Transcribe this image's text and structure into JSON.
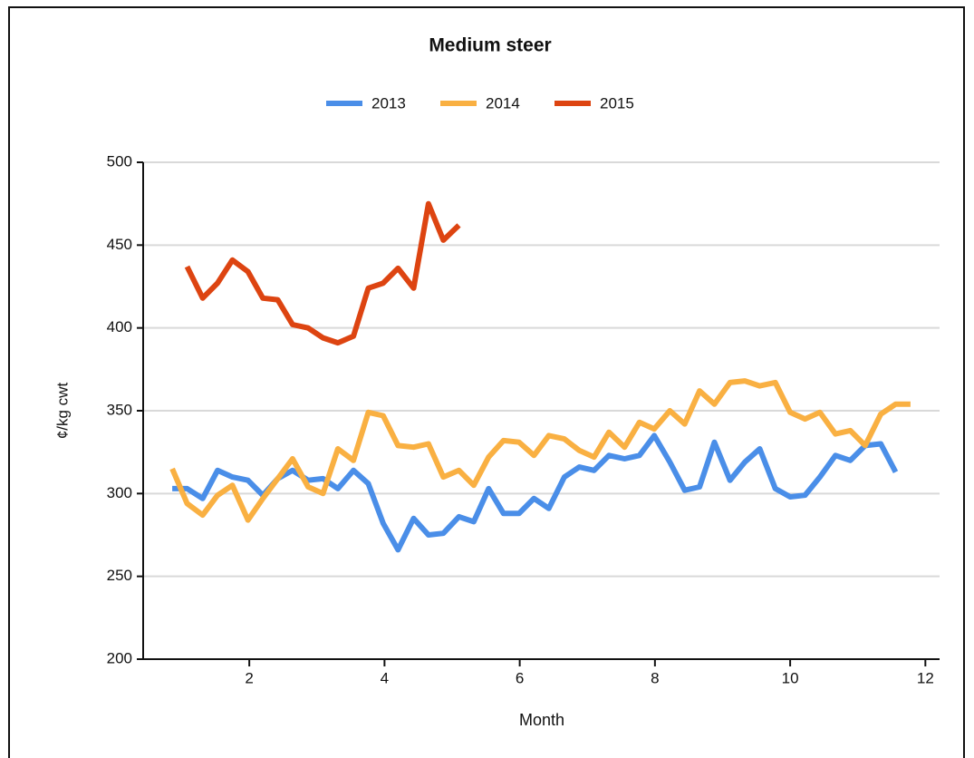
{
  "chart_data": {
    "type": "line",
    "title": "Medium steer",
    "xlabel": "Month",
    "ylabel": "¢/kg cwt",
    "x": [
      0.86,
      1.08,
      1.31,
      1.53,
      1.75,
      1.98,
      2.2,
      2.42,
      2.64,
      2.87,
      3.09,
      3.31,
      3.54,
      3.76,
      3.98,
      4.2,
      4.43,
      4.65,
      4.87,
      5.1,
      5.32,
      5.54,
      5.76,
      5.99,
      6.21,
      6.43,
      6.66,
      6.88,
      7.1,
      7.32,
      7.55,
      7.77,
      7.99,
      8.22,
      8.44,
      8.66,
      8.88,
      9.11,
      9.33,
      9.55,
      9.78,
      10.0,
      10.22,
      10.44,
      10.67,
      10.89,
      11.11,
      11.34,
      11.56,
      11.78
    ],
    "series": [
      {
        "name": "2013",
        "color": "#4a8ee8",
        "values": [
          303,
          303,
          297,
          314,
          310,
          308,
          299,
          309,
          314,
          308,
          309,
          303,
          314,
          306,
          282,
          266,
          285,
          275,
          276,
          286,
          283,
          303,
          288,
          288,
          297,
          291,
          310,
          316,
          314,
          323,
          321,
          323,
          335,
          319,
          302,
          304,
          331,
          308,
          319,
          327,
          303,
          298,
          299,
          310,
          323,
          320,
          329,
          330,
          313,
          null
        ]
      },
      {
        "name": "2014",
        "color": "#f9b042",
        "values": [
          315,
          294,
          287,
          299,
          305,
          284,
          297,
          309,
          321,
          304,
          300,
          327,
          320,
          349,
          347,
          329,
          328,
          330,
          310,
          314,
          305,
          322,
          332,
          331,
          323,
          335,
          333,
          326,
          322,
          337,
          328,
          343,
          339,
          350,
          342,
          362,
          354,
          367,
          368,
          365,
          367,
          349,
          345,
          349,
          336,
          338,
          329,
          348,
          354,
          354
        ]
      },
      {
        "name": "2015",
        "color": "#dd4411",
        "values": [
          null,
          437,
          418,
          427,
          441,
          434,
          418,
          417,
          402,
          400,
          394,
          391,
          395,
          424,
          427,
          436,
          424,
          475,
          453,
          462,
          null,
          null,
          null,
          null,
          null,
          null,
          null,
          null,
          null,
          null,
          null,
          null,
          null,
          null,
          null,
          null,
          null,
          null,
          null,
          null,
          null,
          null,
          null,
          null,
          null,
          null,
          null,
          null,
          null,
          null
        ]
      }
    ],
    "xlim": [
      0.43,
      12.21
    ],
    "xticks": [
      2,
      4,
      6,
      8,
      10,
      12
    ],
    "ylim": [
      200,
      500
    ],
    "yticks": [
      200,
      250,
      300,
      350,
      400,
      450,
      500
    ],
    "grid": true,
    "legend": "top"
  }
}
